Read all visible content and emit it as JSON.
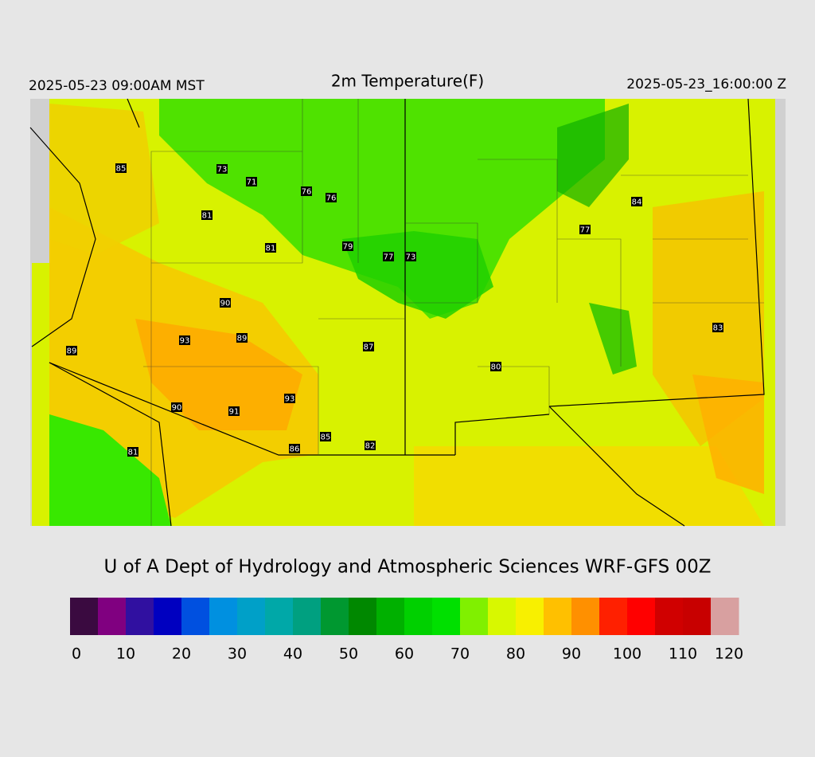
{
  "header": {
    "left": "2025-05-23 09:00AM MST",
    "title": "2m Temperature(F)",
    "right": "2025-05-23_16:00:00 Z"
  },
  "stations": [
    85,
    73,
    71,
    76,
    76,
    81,
    84,
    81,
    79,
    77,
    73,
    77,
    90,
    93,
    89,
    89,
    87,
    83,
    80,
    93,
    90,
    91,
    85,
    82,
    86,
    81
  ],
  "credit": "U of A Dept of Hydrology and Atmospheric Sciences WRF-GFS 00Z",
  "colorbar": {
    "ticks": [
      0,
      10,
      20,
      30,
      40,
      50,
      60,
      70,
      80,
      90,
      100,
      110,
      120
    ],
    "colors": [
      "#3a0a40",
      "#800080",
      "#3010a0",
      "#0000c0",
      "#0050e0",
      "#0090e0",
      "#00a0c8",
      "#00a8a8",
      "#00a080",
      "#009830",
      "#008800",
      "#00b000",
      "#00d000",
      "#00e000",
      "#80f000",
      "#d8f800",
      "#f8f000",
      "#ffc000",
      "#ff9000",
      "#ff2000",
      "#ff0000",
      "#d00000",
      "#c80000",
      "#d8a0a0"
    ]
  }
}
